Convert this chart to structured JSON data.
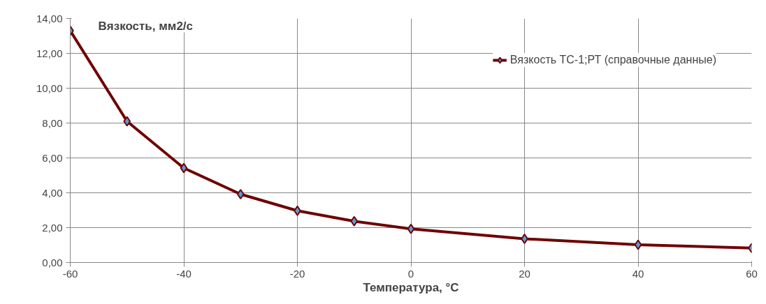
{
  "chart_data": {
    "type": "line",
    "xlabel": "Температура, °C",
    "ylabel": "Вязкость, мм2/с",
    "x": [
      -60,
      -50,
      -40,
      -30,
      -20,
      -10,
      0,
      20,
      40,
      60
    ],
    "series": [
      {
        "name": "Вязкость ТС-1;РТ (справочные данные)",
        "color": "#6e0000",
        "values": [
          13.3,
          8.1,
          5.42,
          3.92,
          2.97,
          2.37,
          1.93,
          1.36,
          1.02,
          0.83
        ]
      }
    ],
    "xlim": [
      -60,
      60
    ],
    "xticks": [
      -60,
      -40,
      -20,
      0,
      20,
      40,
      60
    ],
    "ylim": [
      0,
      14
    ],
    "yticks": [
      {
        "value": 0,
        "label": "0,00"
      },
      {
        "value": 2,
        "label": "2,00"
      },
      {
        "value": 4,
        "label": "4,00"
      },
      {
        "value": 6,
        "label": "6,00"
      },
      {
        "value": 8,
        "label": "8,00"
      },
      {
        "value": 10,
        "label": "10,00"
      },
      {
        "value": 12,
        "label": "12,00"
      },
      {
        "value": 14,
        "label": "14,00"
      }
    ],
    "grid": true,
    "legend": "top right",
    "marker": "diamond",
    "line_style": "solid"
  }
}
